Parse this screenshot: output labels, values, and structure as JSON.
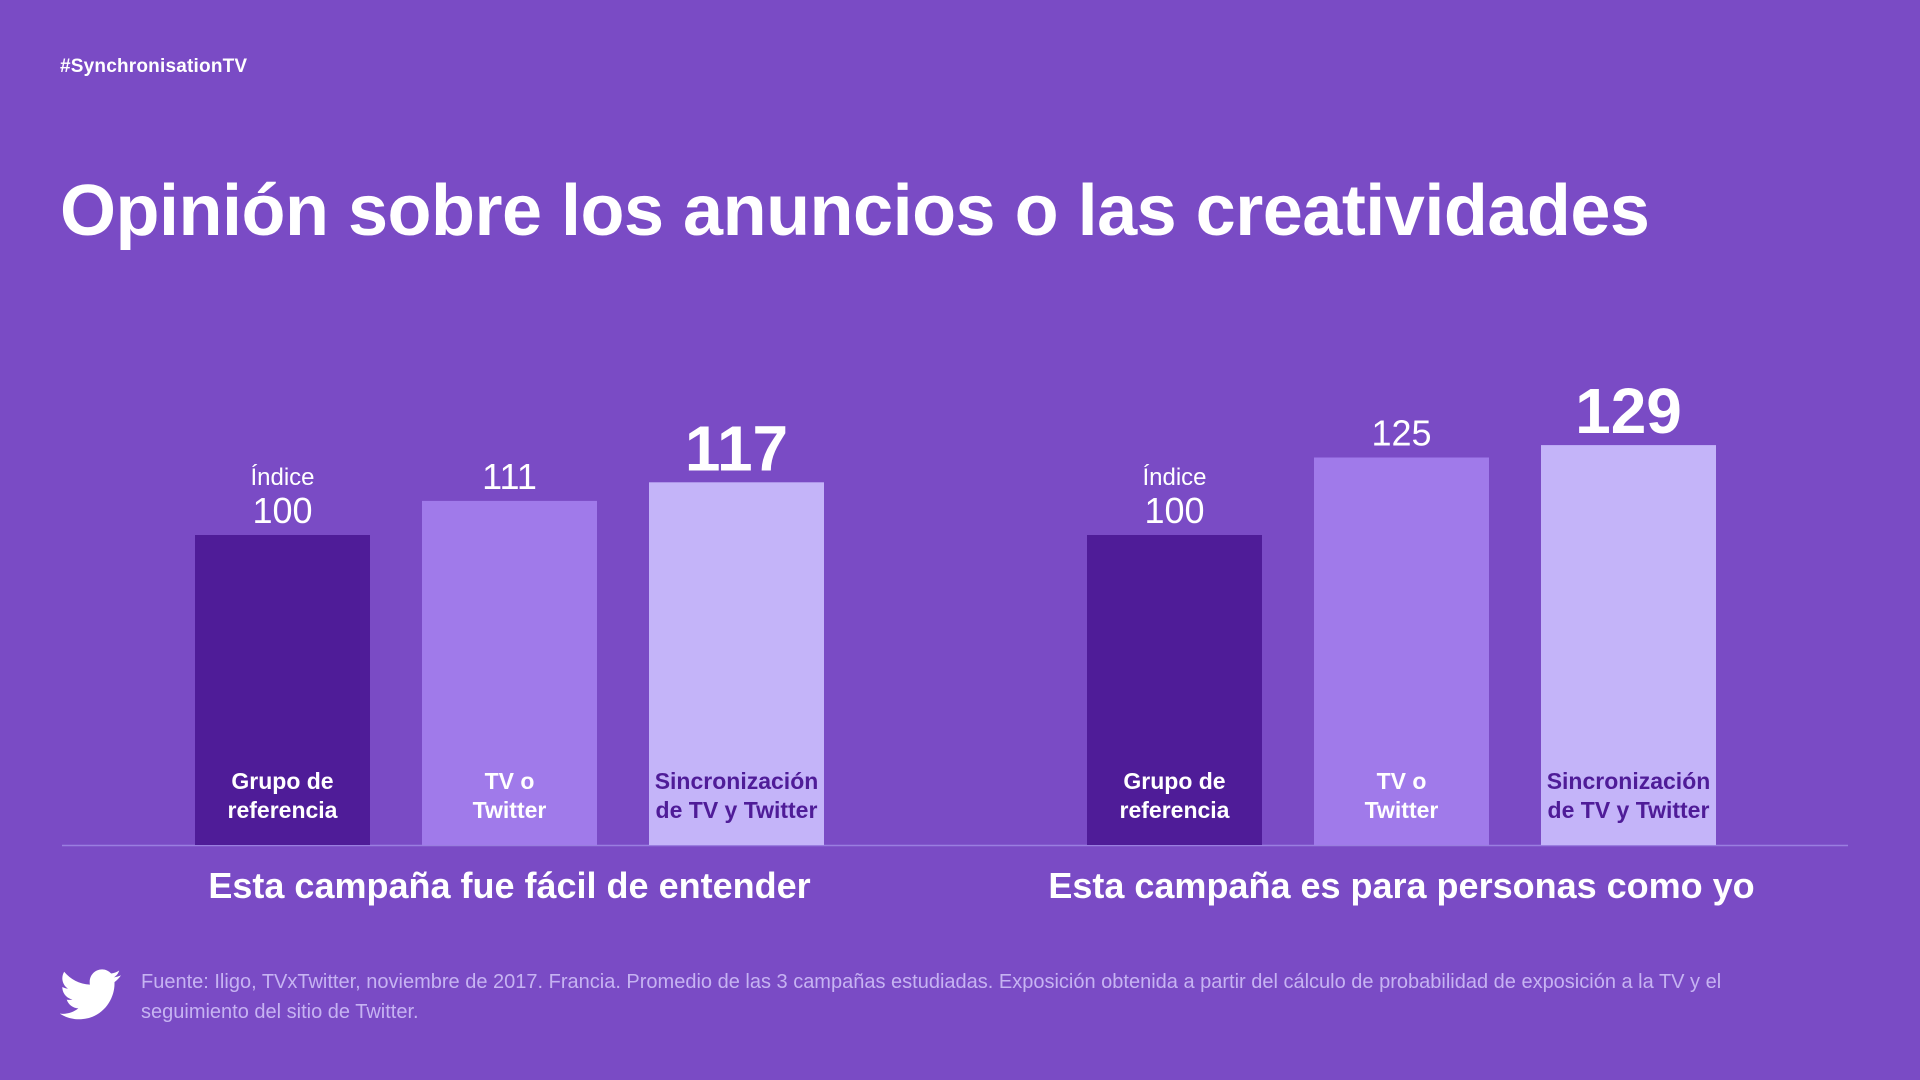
{
  "header": {
    "hashtag": "#SynchronisationTV",
    "title": "Opinión sobre los anuncios o las creatividades"
  },
  "colors": {
    "background": "#7a4bc5",
    "bar_reference": "#4f1c98",
    "bar_tv_or_twitter": "#a07aea",
    "bar_sync": "#c4b4f9",
    "label_dark": "#4f1c98",
    "baseline": "#9a7ee0"
  },
  "chart_data": [
    {
      "type": "bar",
      "title": "Esta campaña fue fácil de entender",
      "index_label": "Índice",
      "categories": [
        "Grupo de referencia",
        "TV o Twitter",
        "Sincronización de TV y Twitter"
      ],
      "category_lines": [
        [
          "Grupo de",
          "referencia"
        ],
        [
          "TV o",
          "Twitter"
        ],
        [
          "Sincronización",
          "de TV y Twitter"
        ]
      ],
      "values": [
        100,
        111,
        117
      ]
    },
    {
      "type": "bar",
      "title": "Esta campaña es para personas como yo",
      "index_label": "Índice",
      "categories": [
        "Grupo de referencia",
        "TV o Twitter",
        "Sincronización de TV y Twitter"
      ],
      "category_lines": [
        [
          "Grupo de",
          "referencia"
        ],
        [
          "TV o",
          "Twitter"
        ],
        [
          "Sincronización",
          "de TV y Twitter"
        ]
      ],
      "values": [
        100,
        125,
        129
      ]
    }
  ],
  "footer": {
    "icon": "twitter-bird-icon",
    "source": "Fuente: Iligo, TVxTwitter, noviembre de 2017. Francia. Promedio de las 3 campañas estudiadas. Exposición obtenida a partir del cálculo de probabilidad de exposición a la TV y el seguimiento del sitio de Twitter."
  }
}
